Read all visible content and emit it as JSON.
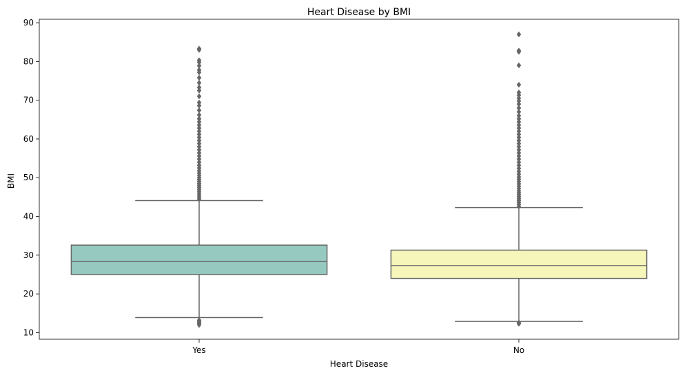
{
  "chart_data": {
    "type": "box",
    "title": "Heart Disease by BMI",
    "xlabel": "Heart Disease",
    "ylabel": "BMI",
    "categories": [
      "Yes",
      "No"
    ],
    "ylim": [
      8.3,
      90.9
    ],
    "yticks": [
      10,
      20,
      30,
      40,
      50,
      60,
      70,
      80,
      90
    ],
    "grid": false,
    "legend": "none",
    "series": [
      {
        "category": "Yes",
        "color": "#96cac0",
        "whisker_low": 13.9,
        "q1": 25.0,
        "median": 28.4,
        "q3": 32.6,
        "whisker_high": 44.1,
        "outliers_low": [
          12.0,
          12.3,
          12.6,
          12.9,
          13.2
        ],
        "outliers_high": [
          44.5,
          45.0,
          45.5,
          46.0,
          46.5,
          47.0,
          47.5,
          48.0,
          48.5,
          49.0,
          49.5,
          50.0,
          50.6,
          51.2,
          51.8,
          52.5,
          53.2,
          54.0,
          54.8,
          55.6,
          56.4,
          57.2,
          58.0,
          58.8,
          59.6,
          60.4,
          61.2,
          62.0,
          62.8,
          63.6,
          64.4,
          65.2,
          66.2,
          67.4,
          68.6,
          69.4,
          71.0,
          72.5,
          73.3,
          74.5,
          75.8,
          77.2,
          77.8,
          78.9,
          79.8,
          80.3,
          83.0,
          83.3
        ]
      },
      {
        "category": "No",
        "color": "#f7f6ba",
        "whisker_low": 12.9,
        "q1": 24.0,
        "median": 27.3,
        "q3": 31.3,
        "whisker_high": 42.3,
        "outliers_low": [
          12.3,
          12.6
        ],
        "outliers_high": [
          42.6,
          43.1,
          43.6,
          44.1,
          44.6,
          45.1,
          45.6,
          46.1,
          46.6,
          47.2,
          47.8,
          48.4,
          49.0,
          49.6,
          50.2,
          50.9,
          51.6,
          52.4,
          53.2,
          54.0,
          54.8,
          55.6,
          56.4,
          57.2,
          58.0,
          58.8,
          59.6,
          60.4,
          61.2,
          62.0,
          62.8,
          63.6,
          64.4,
          65.2,
          66.0,
          67.0,
          68.0,
          69.0,
          69.8,
          70.5,
          71.3,
          72.0,
          74.0,
          79.0,
          82.5,
          82.8,
          87.0
        ]
      }
    ]
  }
}
